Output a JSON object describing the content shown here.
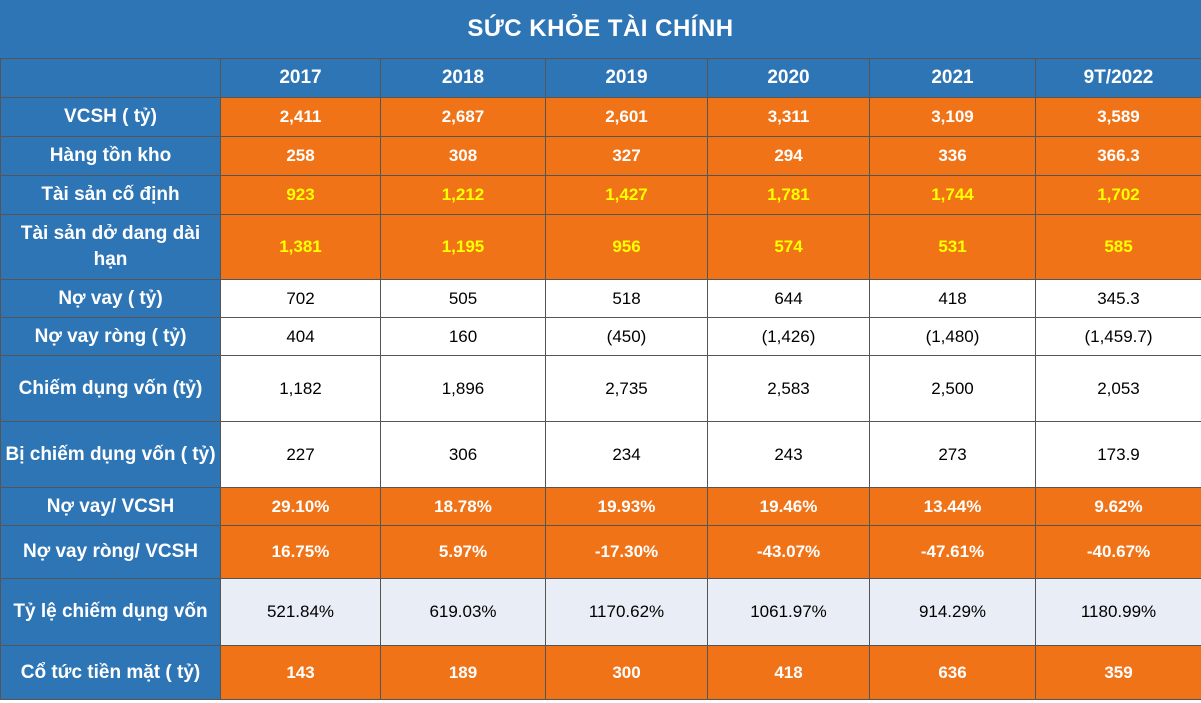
{
  "chart_data": {
    "type": "table",
    "title": "SỨC KHỎE TÀI CHÍNH",
    "columns": [
      "2017",
      "2018",
      "2019",
      "2020",
      "2021",
      "9T/2022"
    ],
    "rows": [
      {
        "label": "VCSH ( tỷ)",
        "style": "orange",
        "values": [
          "2,411",
          "2,687",
          "2,601",
          "3,311",
          "3,109",
          "3,589"
        ]
      },
      {
        "label": "Hàng tồn kho",
        "style": "orange",
        "values": [
          "258",
          "308",
          "327",
          "294",
          "336",
          "366.3"
        ]
      },
      {
        "label": "Tài sản cố định",
        "style": "orange-yellow",
        "values": [
          "923",
          "1,212",
          "1,427",
          "1,781",
          "1,744",
          "1,702"
        ]
      },
      {
        "label": "Tài sản dở dang dài hạn",
        "style": "orange-yellow",
        "values": [
          "1,381",
          "1,195",
          "956",
          "574",
          "531",
          "585"
        ]
      },
      {
        "label": "Nợ vay ( tỷ)",
        "style": "white",
        "values": [
          "702",
          "505",
          "518",
          "644",
          "418",
          "345.3"
        ]
      },
      {
        "label": "Nợ vay ròng ( tỷ)",
        "style": "white",
        "values": [
          "404",
          "160",
          "(450)",
          "(1,426)",
          "(1,480)",
          "(1,459.7)"
        ]
      },
      {
        "label": "Chiếm dụng vốn (tỷ)",
        "style": "white",
        "values": [
          "1,182",
          "1,896",
          "2,735",
          "2,583",
          "2,500",
          "2,053"
        ]
      },
      {
        "label": "Bị chiếm dụng vốn ( tỷ)",
        "style": "white",
        "values": [
          "227",
          "306",
          "234",
          "243",
          "273",
          "173.9"
        ]
      },
      {
        "label": "Nợ vay/ VCSH",
        "style": "orange",
        "values": [
          "29.10%",
          "18.78%",
          "19.93%",
          "19.46%",
          "13.44%",
          "9.62%"
        ]
      },
      {
        "label": "Nợ vay ròng/ VCSH",
        "style": "orange",
        "values": [
          "16.75%",
          "5.97%",
          "-17.30%",
          "-43.07%",
          "-47.61%",
          "-40.67%"
        ]
      },
      {
        "label": "Tỷ lệ chiếm dụng vốn",
        "style": "light",
        "values": [
          "521.84%",
          "619.03%",
          "1170.62%",
          "1061.97%",
          "914.29%",
          "1180.99%"
        ]
      },
      {
        "label": "Cổ tức tiền mặt ( tỷ)",
        "style": "orange",
        "values": [
          "143",
          "189",
          "300",
          "418",
          "636",
          "359"
        ]
      }
    ],
    "colors": {
      "header_blue": "#2e75b6",
      "orange": "#f07317",
      "highlight_yellow": "#ffff00",
      "light_row": "#e9edf5",
      "white": "#ffffff"
    }
  }
}
